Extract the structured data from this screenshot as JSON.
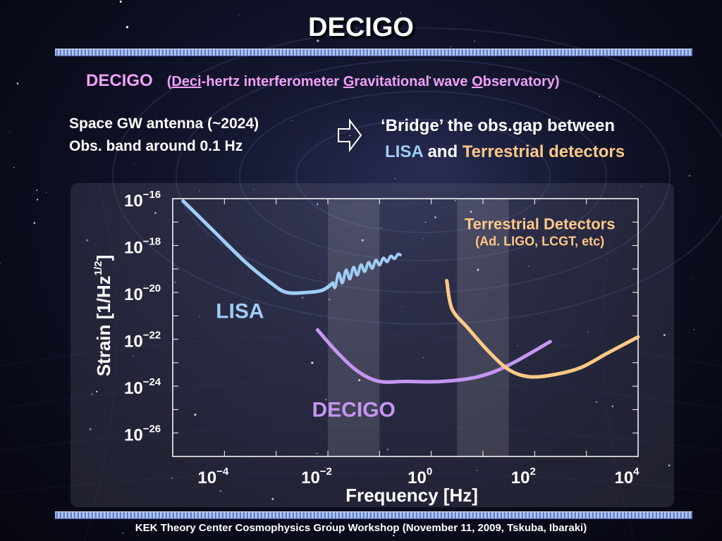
{
  "slide": {
    "title": "DECIGO",
    "subtitle": {
      "abbr": "DECIGO",
      "open": "(",
      "deci": "Deci",
      "part1": "-hertz interferometer ",
      "g": "G",
      "part2": "ravitational wave ",
      "o": "O",
      "part3": "bservatory)"
    },
    "left_text": [
      "Space GW antenna  (~2024)",
      "Obs. band around 0.1 Hz"
    ],
    "right_text": {
      "line1": "‘Bridge’ the obs.gap between",
      "lisa": "LISA",
      "and": " and ",
      "terrestrial": "Terrestrial detectors"
    },
    "footer": "KEK Theory Center Cosmophysics Group Workshop (November 11, 2009, Tskuba, Ibaraki)"
  },
  "colors": {
    "lisa": "#9fcdf5",
    "decigo": "#c596f2",
    "terrestrial": "#ffc986",
    "subtitle": "#f1a0f5",
    "shade": "#ffffff"
  },
  "icons": {
    "arrow": "right-arrow-icon"
  },
  "chart_data": {
    "type": "line",
    "x_scale": "log",
    "y_scale": "log",
    "xlim_exp": [
      -5,
      4
    ],
    "ylim_exp": [
      -27,
      -16
    ],
    "xlabel": "Frequency   [Hz]",
    "ylabel_main": "Strain   [1/Hz",
    "ylabel_exp": "1/2",
    "ylabel_close": "]",
    "x_ticks": [
      {
        "base": "10",
        "exp": "−4",
        "value": -4
      },
      {
        "base": "10",
        "exp": "−2",
        "value": -2
      },
      {
        "base": "10",
        "exp": "0",
        "value": 0
      },
      {
        "base": "10",
        "exp": "2",
        "value": 2
      },
      {
        "base": "10",
        "exp": "4",
        "value": 4
      }
    ],
    "y_ticks": [
      {
        "base": "10",
        "exp": "−16",
        "value": -16
      },
      {
        "base": "10",
        "exp": "−18",
        "value": -18
      },
      {
        "base": "10",
        "exp": "−20",
        "value": -20
      },
      {
        "base": "10",
        "exp": "−22",
        "value": -22
      },
      {
        "base": "10",
        "exp": "−24",
        "value": -24
      },
      {
        "base": "10",
        "exp": "−26",
        "value": -26
      }
    ],
    "shaded_bands": [
      {
        "x_exp": [
          -2,
          -1
        ]
      },
      {
        "x_exp": [
          0.5,
          1.5
        ]
      }
    ],
    "series": [
      {
        "name": "LISA",
        "color": "#9fcdf5",
        "points": [
          [
            -4.8,
            -16.1
          ],
          [
            -4.2,
            -17.4
          ],
          [
            -3.6,
            -18.7
          ],
          [
            -3.1,
            -19.6
          ],
          [
            -2.8,
            -20.0
          ],
          [
            -2.4,
            -20.0
          ],
          [
            -2.1,
            -19.9
          ],
          [
            -1.9,
            -19.6
          ]
        ],
        "wiggle": {
          "x_exp": [
            -1.9,
            -0.6
          ],
          "y_exp": [
            -19.6,
            -18.4
          ],
          "periods": 9
        }
      },
      {
        "name": "DECIGO",
        "color": "#c596f2",
        "points": [
          [
            -2.2,
            -21.6
          ],
          [
            -1.8,
            -22.6
          ],
          [
            -1.4,
            -23.4
          ],
          [
            -1.0,
            -23.8
          ],
          [
            -0.5,
            -23.8
          ],
          [
            0.2,
            -23.8
          ],
          [
            0.9,
            -23.6
          ],
          [
            1.5,
            -23.1
          ],
          [
            2.3,
            -22.1
          ]
        ]
      },
      {
        "name": "Terrestrial Detectors",
        "color": "#ffc986",
        "points": [
          [
            0.3,
            -19.5
          ],
          [
            0.4,
            -20.7
          ],
          [
            0.7,
            -21.5
          ],
          [
            1.1,
            -22.5
          ],
          [
            1.5,
            -23.3
          ],
          [
            1.9,
            -23.6
          ],
          [
            2.4,
            -23.5
          ],
          [
            2.9,
            -23.2
          ],
          [
            3.4,
            -22.6
          ],
          [
            4.0,
            -21.9
          ]
        ]
      }
    ],
    "annotations": [
      {
        "name": "lisa-label",
        "text": "LISA",
        "color": "#9fcdf5",
        "x_exp": -3.7,
        "y_exp": -21.1
      },
      {
        "name": "decigo-label",
        "text": "DECIGO",
        "color": "#c596f2",
        "x_exp": -1.5,
        "y_exp": -25.3
      },
      {
        "name": "terrestrial-label",
        "text": "Terrestrial Detectors",
        "color": "#ffc986",
        "x_exp": 2.1,
        "y_exp": -17.3
      },
      {
        "name": "terrestrial-sublabel",
        "text": "(Ad. LIGO,  LCGT, etc)",
        "color": "#ffc986",
        "x_exp": 2.1,
        "y_exp": -18.0
      }
    ]
  }
}
